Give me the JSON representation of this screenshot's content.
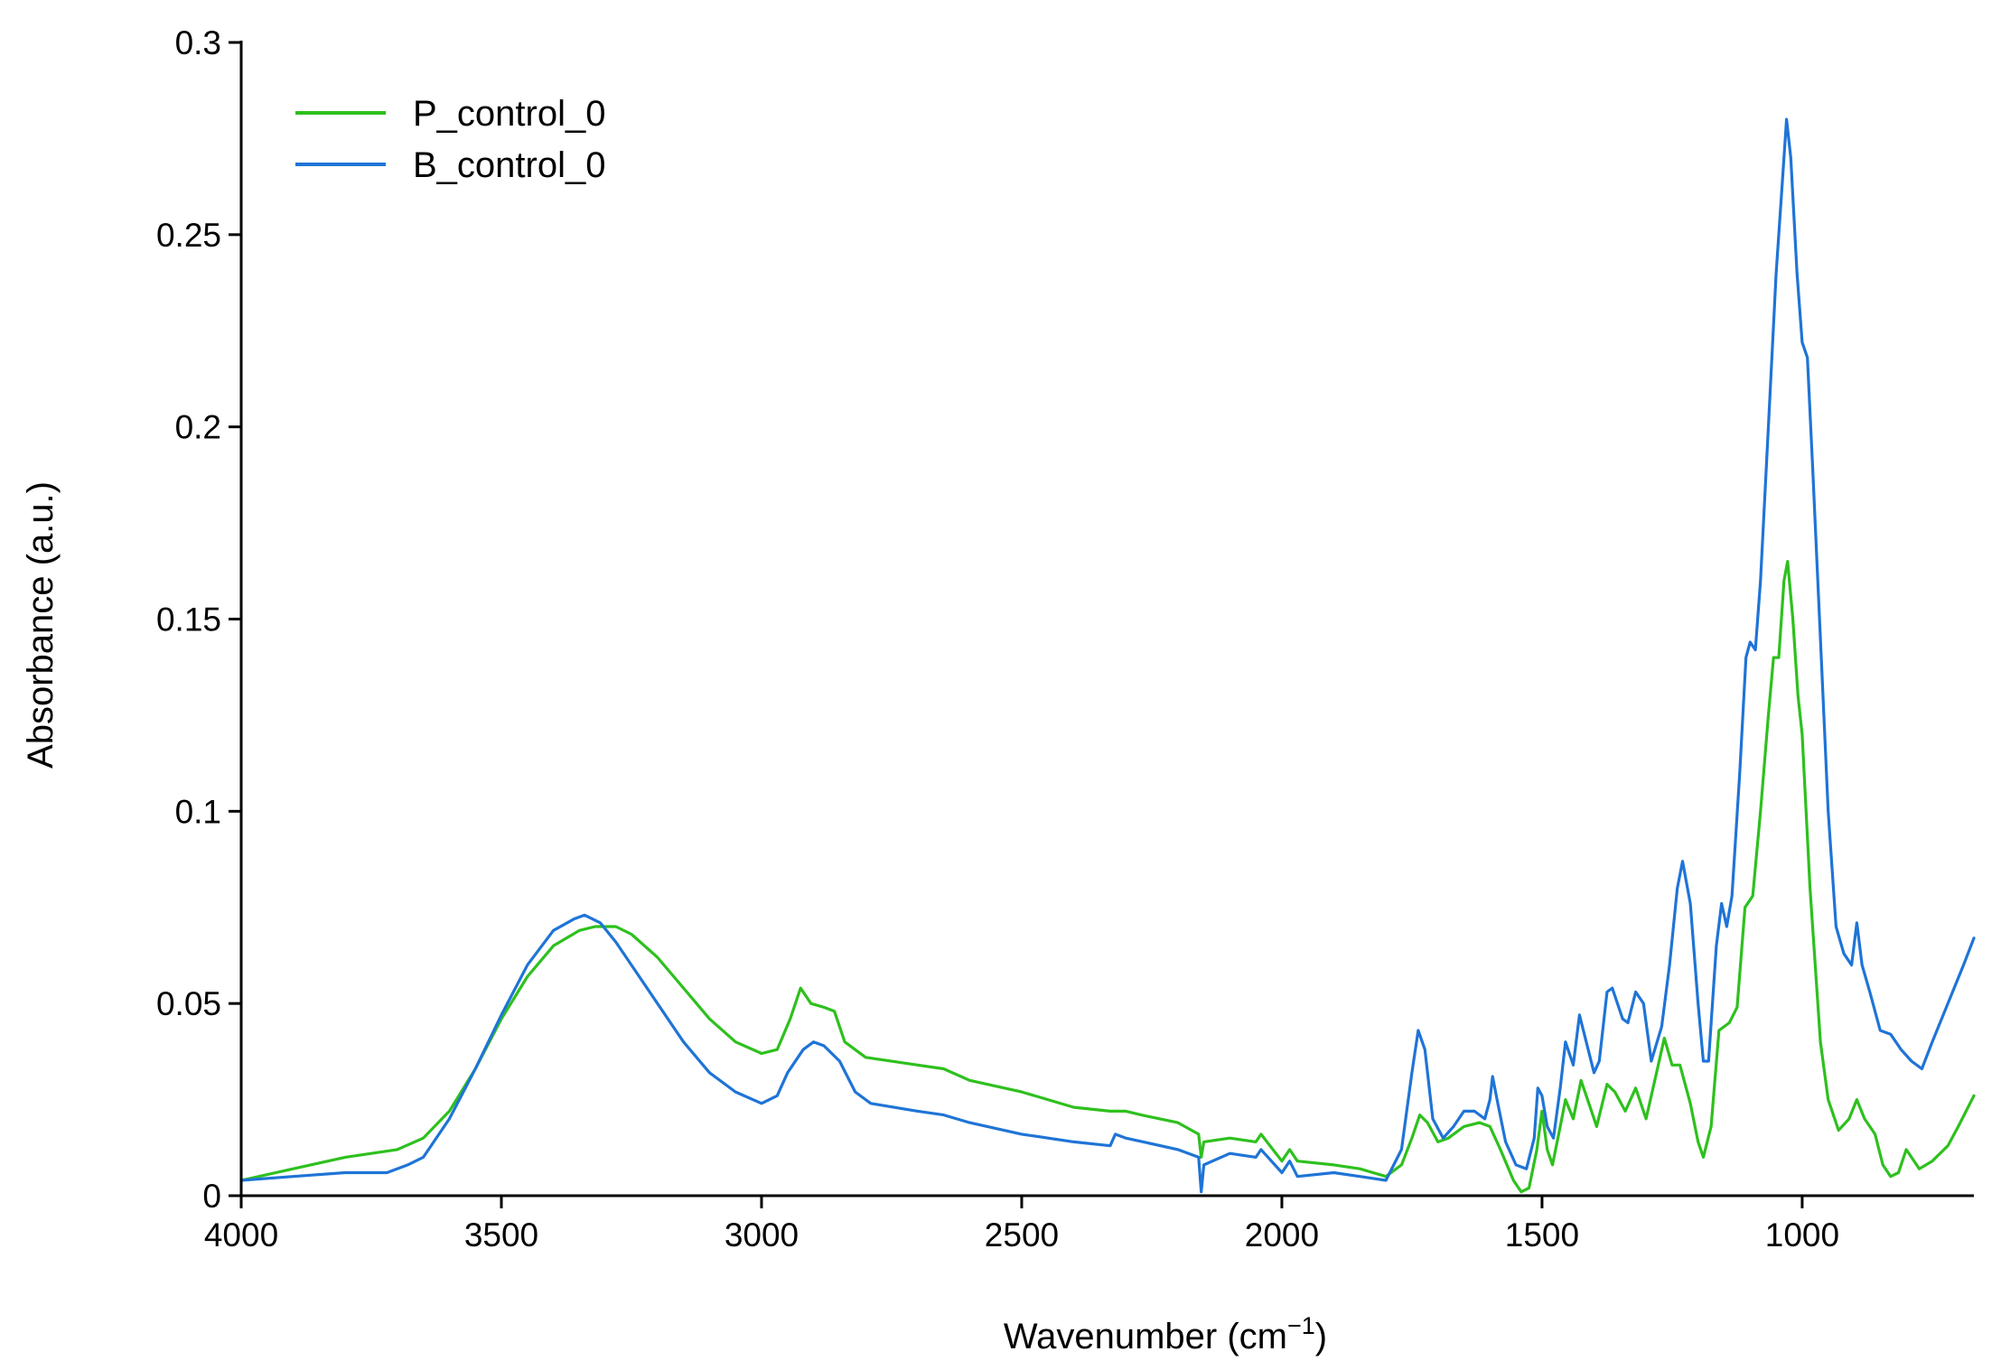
{
  "chart_data": {
    "type": "line",
    "title": "",
    "xlabel": "Wavenumber (cm",
    "xlabel_sup": "−1",
    "xlabel_close": ")",
    "ylabel": "Absorbance (a.u.)",
    "xlim": [
      4000,
      670
    ],
    "ylim": [
      0,
      0.3
    ],
    "x_reversed": true,
    "grid": false,
    "legend_position": "top-left",
    "x_ticks": [
      4000,
      3500,
      3000,
      2500,
      2000,
      1500,
      1000
    ],
    "x_tick_labels": [
      "4000",
      "3500",
      "3000",
      "2500",
      "2000",
      "1500",
      "1000"
    ],
    "y_ticks": [
      0,
      0.05,
      0.1,
      0.15,
      0.2,
      0.25,
      0.3
    ],
    "y_tick_labels": [
      "0",
      "0.05",
      "0.1",
      "0.15",
      "0.2",
      "0.25",
      "0.3"
    ],
    "series": [
      {
        "name": "P_control_0",
        "color": "#2ec01e",
        "points": [
          [
            4000,
            0.004
          ],
          [
            3900,
            0.007
          ],
          [
            3800,
            0.01
          ],
          [
            3700,
            0.012
          ],
          [
            3650,
            0.015
          ],
          [
            3600,
            0.022
          ],
          [
            3550,
            0.033
          ],
          [
            3500,
            0.046
          ],
          [
            3450,
            0.057
          ],
          [
            3400,
            0.065
          ],
          [
            3350,
            0.069
          ],
          [
            3320,
            0.07
          ],
          [
            3280,
            0.07
          ],
          [
            3250,
            0.068
          ],
          [
            3200,
            0.062
          ],
          [
            3150,
            0.054
          ],
          [
            3100,
            0.046
          ],
          [
            3050,
            0.04
          ],
          [
            3000,
            0.037
          ],
          [
            2970,
            0.038
          ],
          [
            2945,
            0.046
          ],
          [
            2925,
            0.054
          ],
          [
            2905,
            0.05
          ],
          [
            2880,
            0.049
          ],
          [
            2860,
            0.048
          ],
          [
            2840,
            0.04
          ],
          [
            2800,
            0.036
          ],
          [
            2700,
            0.034
          ],
          [
            2650,
            0.033
          ],
          [
            2600,
            0.03
          ],
          [
            2500,
            0.027
          ],
          [
            2400,
            0.023
          ],
          [
            2330,
            0.022
          ],
          [
            2300,
            0.022
          ],
          [
            2270,
            0.021
          ],
          [
            2200,
            0.019
          ],
          [
            2160,
            0.016
          ],
          [
            2155,
            0.01
          ],
          [
            2150,
            0.014
          ],
          [
            2100,
            0.015
          ],
          [
            2050,
            0.014
          ],
          [
            2040,
            0.016
          ],
          [
            2000,
            0.009
          ],
          [
            1985,
            0.012
          ],
          [
            1970,
            0.009
          ],
          [
            1900,
            0.008
          ],
          [
            1850,
            0.007
          ],
          [
            1800,
            0.005
          ],
          [
            1770,
            0.008
          ],
          [
            1750,
            0.015
          ],
          [
            1735,
            0.021
          ],
          [
            1720,
            0.019
          ],
          [
            1700,
            0.014
          ],
          [
            1680,
            0.015
          ],
          [
            1650,
            0.018
          ],
          [
            1620,
            0.019
          ],
          [
            1600,
            0.018
          ],
          [
            1580,
            0.012
          ],
          [
            1555,
            0.004
          ],
          [
            1540,
            0.001
          ],
          [
            1525,
            0.002
          ],
          [
            1510,
            0.012
          ],
          [
            1500,
            0.022
          ],
          [
            1490,
            0.012
          ],
          [
            1480,
            0.008
          ],
          [
            1465,
            0.018
          ],
          [
            1455,
            0.025
          ],
          [
            1440,
            0.02
          ],
          [
            1425,
            0.03
          ],
          [
            1410,
            0.024
          ],
          [
            1395,
            0.018
          ],
          [
            1375,
            0.029
          ],
          [
            1360,
            0.027
          ],
          [
            1340,
            0.022
          ],
          [
            1320,
            0.028
          ],
          [
            1300,
            0.02
          ],
          [
            1280,
            0.032
          ],
          [
            1265,
            0.041
          ],
          [
            1250,
            0.034
          ],
          [
            1235,
            0.034
          ],
          [
            1215,
            0.024
          ],
          [
            1200,
            0.014
          ],
          [
            1190,
            0.01
          ],
          [
            1175,
            0.018
          ],
          [
            1160,
            0.043
          ],
          [
            1140,
            0.045
          ],
          [
            1125,
            0.049
          ],
          [
            1110,
            0.075
          ],
          [
            1095,
            0.078
          ],
          [
            1080,
            0.1
          ],
          [
            1065,
            0.125
          ],
          [
            1055,
            0.14
          ],
          [
            1045,
            0.14
          ],
          [
            1035,
            0.16
          ],
          [
            1028,
            0.165
          ],
          [
            1018,
            0.15
          ],
          [
            1008,
            0.13
          ],
          [
            1000,
            0.12
          ],
          [
            985,
            0.08
          ],
          [
            965,
            0.04
          ],
          [
            950,
            0.025
          ],
          [
            930,
            0.017
          ],
          [
            910,
            0.02
          ],
          [
            895,
            0.025
          ],
          [
            880,
            0.02
          ],
          [
            860,
            0.016
          ],
          [
            845,
            0.008
          ],
          [
            830,
            0.005
          ],
          [
            815,
            0.006
          ],
          [
            800,
            0.012
          ],
          [
            790,
            0.01
          ],
          [
            775,
            0.007
          ],
          [
            750,
            0.009
          ],
          [
            720,
            0.013
          ],
          [
            700,
            0.018
          ],
          [
            670,
            0.026
          ]
        ]
      },
      {
        "name": "B_control_0",
        "color": "#1f74d6",
        "points": [
          [
            4000,
            0.004
          ],
          [
            3900,
            0.005
          ],
          [
            3800,
            0.006
          ],
          [
            3720,
            0.006
          ],
          [
            3680,
            0.008
          ],
          [
            3650,
            0.01
          ],
          [
            3600,
            0.02
          ],
          [
            3550,
            0.033
          ],
          [
            3500,
            0.047
          ],
          [
            3450,
            0.06
          ],
          [
            3400,
            0.069
          ],
          [
            3360,
            0.072
          ],
          [
            3340,
            0.073
          ],
          [
            3310,
            0.071
          ],
          [
            3280,
            0.066
          ],
          [
            3250,
            0.06
          ],
          [
            3200,
            0.05
          ],
          [
            3150,
            0.04
          ],
          [
            3100,
            0.032
          ],
          [
            3050,
            0.027
          ],
          [
            3000,
            0.024
          ],
          [
            2970,
            0.026
          ],
          [
            2950,
            0.032
          ],
          [
            2920,
            0.038
          ],
          [
            2900,
            0.04
          ],
          [
            2880,
            0.039
          ],
          [
            2850,
            0.035
          ],
          [
            2820,
            0.027
          ],
          [
            2790,
            0.024
          ],
          [
            2700,
            0.022
          ],
          [
            2650,
            0.021
          ],
          [
            2600,
            0.019
          ],
          [
            2500,
            0.016
          ],
          [
            2400,
            0.014
          ],
          [
            2330,
            0.013
          ],
          [
            2320,
            0.016
          ],
          [
            2300,
            0.015
          ],
          [
            2200,
            0.012
          ],
          [
            2160,
            0.01
          ],
          [
            2155,
            0.001
          ],
          [
            2150,
            0.008
          ],
          [
            2100,
            0.011
          ],
          [
            2050,
            0.01
          ],
          [
            2040,
            0.012
          ],
          [
            2000,
            0.006
          ],
          [
            1985,
            0.009
          ],
          [
            1970,
            0.005
          ],
          [
            1900,
            0.006
          ],
          [
            1850,
            0.005
          ],
          [
            1800,
            0.004
          ],
          [
            1770,
            0.012
          ],
          [
            1750,
            0.032
          ],
          [
            1738,
            0.043
          ],
          [
            1725,
            0.038
          ],
          [
            1710,
            0.02
          ],
          [
            1690,
            0.015
          ],
          [
            1670,
            0.018
          ],
          [
            1650,
            0.022
          ],
          [
            1630,
            0.022
          ],
          [
            1610,
            0.02
          ],
          [
            1600,
            0.025
          ],
          [
            1595,
            0.031
          ],
          [
            1585,
            0.024
          ],
          [
            1570,
            0.014
          ],
          [
            1550,
            0.008
          ],
          [
            1530,
            0.007
          ],
          [
            1515,
            0.015
          ],
          [
            1508,
            0.028
          ],
          [
            1500,
            0.026
          ],
          [
            1490,
            0.018
          ],
          [
            1478,
            0.015
          ],
          [
            1465,
            0.028
          ],
          [
            1455,
            0.04
          ],
          [
            1440,
            0.034
          ],
          [
            1428,
            0.047
          ],
          [
            1415,
            0.04
          ],
          [
            1400,
            0.032
          ],
          [
            1390,
            0.035
          ],
          [
            1375,
            0.053
          ],
          [
            1365,
            0.054
          ],
          [
            1345,
            0.046
          ],
          [
            1335,
            0.045
          ],
          [
            1320,
            0.053
          ],
          [
            1305,
            0.05
          ],
          [
            1290,
            0.035
          ],
          [
            1270,
            0.044
          ],
          [
            1255,
            0.06
          ],
          [
            1240,
            0.08
          ],
          [
            1230,
            0.087
          ],
          [
            1215,
            0.076
          ],
          [
            1200,
            0.05
          ],
          [
            1190,
            0.035
          ],
          [
            1180,
            0.035
          ],
          [
            1165,
            0.065
          ],
          [
            1155,
            0.076
          ],
          [
            1145,
            0.07
          ],
          [
            1135,
            0.078
          ],
          [
            1120,
            0.11
          ],
          [
            1108,
            0.14
          ],
          [
            1100,
            0.144
          ],
          [
            1090,
            0.142
          ],
          [
            1080,
            0.16
          ],
          [
            1065,
            0.2
          ],
          [
            1050,
            0.24
          ],
          [
            1040,
            0.26
          ],
          [
            1030,
            0.28
          ],
          [
            1022,
            0.27
          ],
          [
            1010,
            0.24
          ],
          [
            1000,
            0.222
          ],
          [
            990,
            0.218
          ],
          [
            980,
            0.19
          ],
          [
            965,
            0.145
          ],
          [
            950,
            0.1
          ],
          [
            935,
            0.07
          ],
          [
            920,
            0.063
          ],
          [
            905,
            0.06
          ],
          [
            895,
            0.071
          ],
          [
            885,
            0.06
          ],
          [
            870,
            0.053
          ],
          [
            850,
            0.043
          ],
          [
            830,
            0.042
          ],
          [
            810,
            0.038
          ],
          [
            790,
            0.035
          ],
          [
            770,
            0.033
          ],
          [
            750,
            0.04
          ],
          [
            720,
            0.05
          ],
          [
            690,
            0.06
          ],
          [
            670,
            0.067
          ]
        ]
      }
    ]
  }
}
